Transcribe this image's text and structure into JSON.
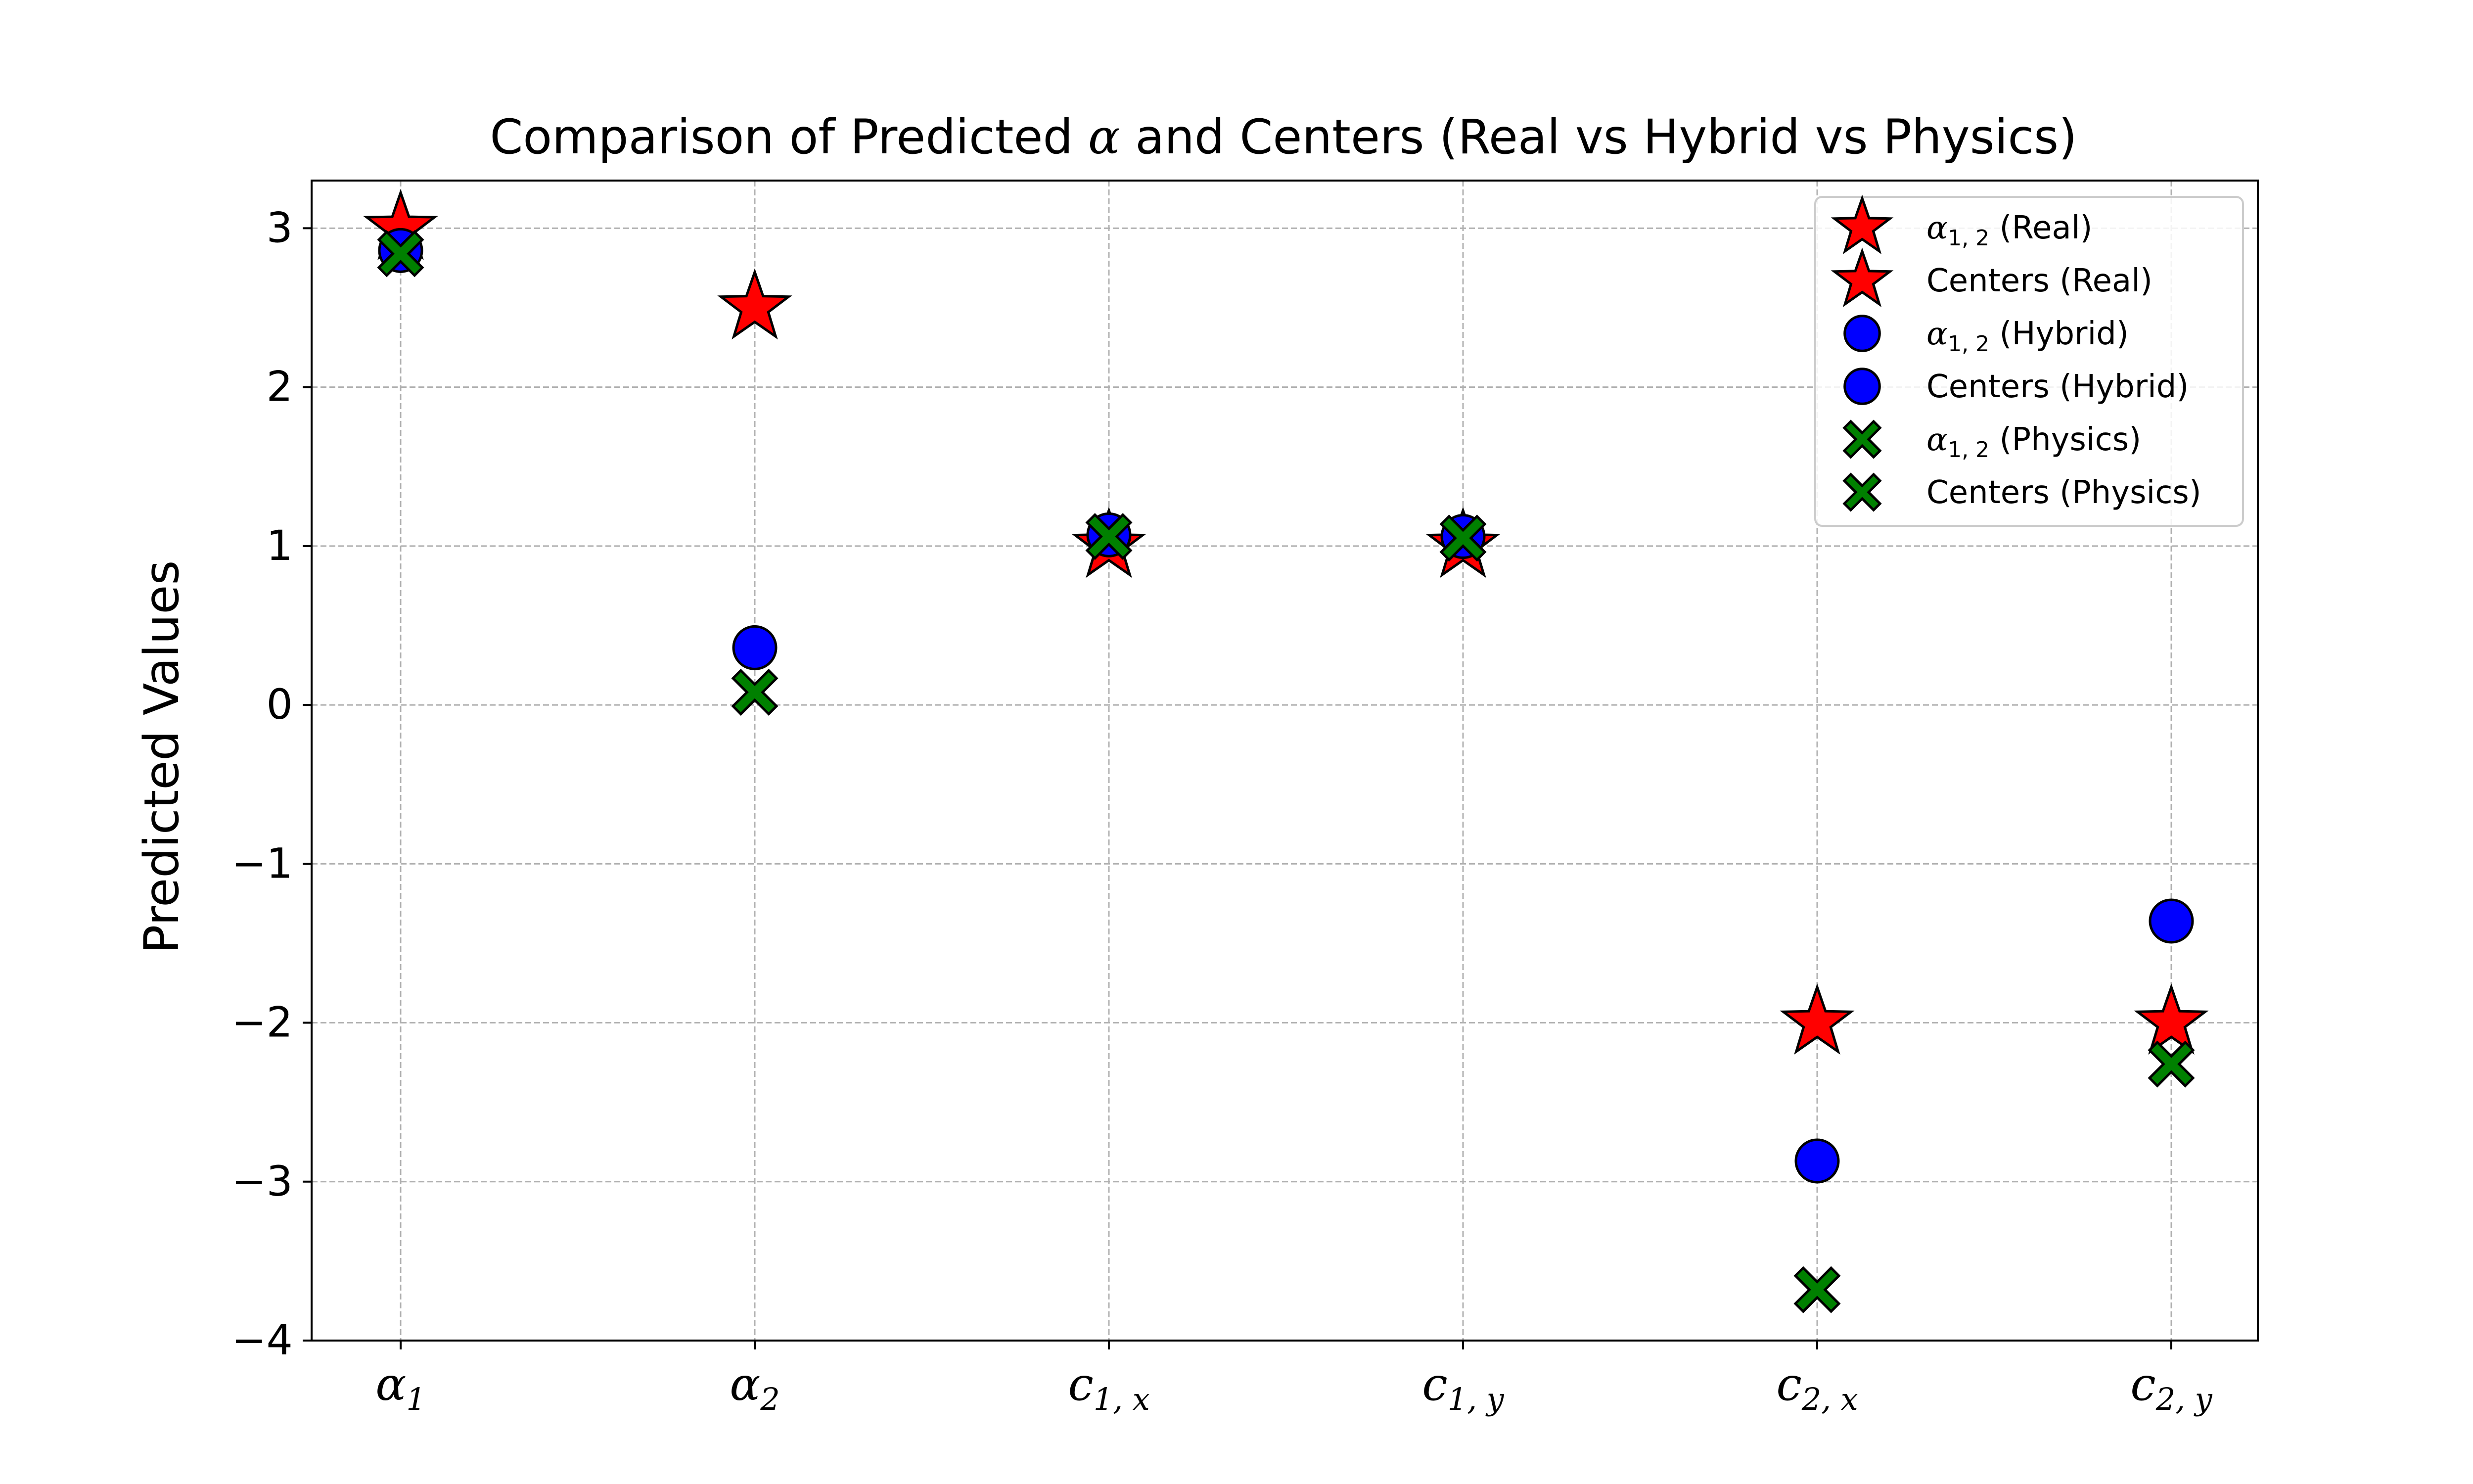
{
  "chart_data": {
    "type": "scatter",
    "title_parts": {
      "prefix": "Comparison of Predicted ",
      "symbol": "α",
      "suffix": " and Centers (Real vs Hybrid vs Physics)"
    },
    "ylabel": "Predicted Values",
    "xlabel": "",
    "ylim": [
      -4,
      3.3
    ],
    "yticks": [
      -4,
      -3,
      -2,
      -1,
      0,
      1,
      2,
      3
    ],
    "ytick_labels": [
      "−4",
      "−3",
      "−2",
      "−1",
      "0",
      "1",
      "2",
      "3"
    ],
    "categories": [
      {
        "base": "α",
        "sub": "1"
      },
      {
        "base": "α",
        "sub": "2"
      },
      {
        "base": "c",
        "sub": "1, x"
      },
      {
        "base": "c",
        "sub": "1, y"
      },
      {
        "base": "c",
        "sub": "2, x"
      },
      {
        "base": "c",
        "sub": "2, y"
      }
    ],
    "grid": true,
    "legend_placement": "top-right",
    "series": [
      {
        "name": "Real",
        "marker": "star",
        "color": "#ff0000",
        "values": [
          3.0,
          2.5,
          1.0,
          1.0,
          -2.0,
          -2.0
        ]
      },
      {
        "name": "Hybrid",
        "marker": "circle",
        "color": "#0000ff",
        "values": [
          2.86,
          0.36,
          1.07,
          1.06,
          -2.87,
          -1.36
        ]
      },
      {
        "name": "Physics",
        "marker": "x",
        "color": "#008000",
        "values": [
          2.84,
          0.08,
          1.06,
          1.05,
          -3.68,
          -2.26
        ]
      }
    ],
    "legend": [
      {
        "marker": "star",
        "color": "#ff0000",
        "symbol": "α",
        "sub": "1, 2",
        "text": " (Real)"
      },
      {
        "marker": "star",
        "color": "#ff0000",
        "symbol": "",
        "sub": "",
        "text": "Centers (Real)"
      },
      {
        "marker": "circle",
        "color": "#0000ff",
        "symbol": "α",
        "sub": "1, 2",
        "text": " (Hybrid)"
      },
      {
        "marker": "circle",
        "color": "#0000ff",
        "symbol": "",
        "sub": "",
        "text": "Centers (Hybrid)"
      },
      {
        "marker": "x",
        "color": "#008000",
        "symbol": "α",
        "sub": "1, 2",
        "text": " (Physics)"
      },
      {
        "marker": "x",
        "color": "#008000",
        "symbol": "",
        "sub": "",
        "text": "Centers (Physics)"
      }
    ]
  }
}
